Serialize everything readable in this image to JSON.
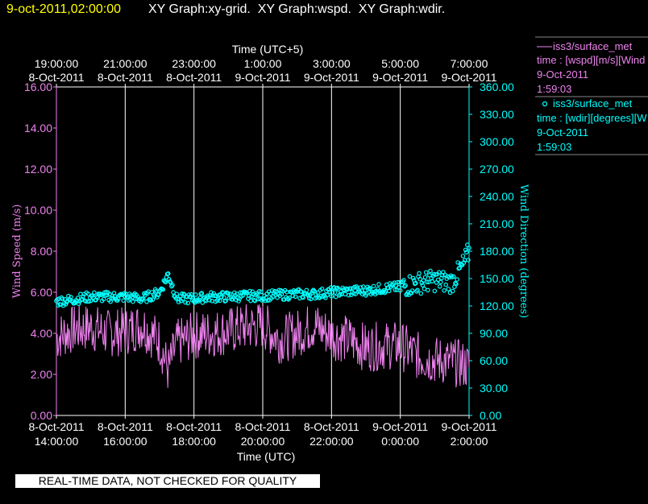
{
  "header": {
    "date_time": "9-oct-2011,02:00:00",
    "graphs": "XY Graph:xy-grid.  XY Graph:wspd.  XY Graph:wdir."
  },
  "top_axis": {
    "label": "Time (UTC+5)",
    "ticks": [
      {
        "time": "19:00:00",
        "date": "8-Oct-2011"
      },
      {
        "time": "21:00:00",
        "date": "8-Oct-2011"
      },
      {
        "time": "23:00:00",
        "date": "8-Oct-2011"
      },
      {
        "time": "1:00:00",
        "date": "9-Oct-2011"
      },
      {
        "time": "3:00:00",
        "date": "9-Oct-2011"
      },
      {
        "time": "5:00:00",
        "date": "9-Oct-2011"
      },
      {
        "time": "7:00:00",
        "date": "9-Oct-2011"
      }
    ]
  },
  "bottom_axis": {
    "label": "Time (UTC)",
    "ticks": [
      {
        "date": "8-Oct-2011",
        "time": "14:00:00"
      },
      {
        "date": "8-Oct-2011",
        "time": "16:00:00"
      },
      {
        "date": "8-Oct-2011",
        "time": "18:00:00"
      },
      {
        "date": "8-Oct-2011",
        "time": "20:00:00"
      },
      {
        "date": "8-Oct-2011",
        "time": "22:00:00"
      },
      {
        "date": "9-Oct-2011",
        "time": "0:00:00"
      },
      {
        "date": "9-Oct-2011",
        "time": "2:00:00"
      }
    ]
  },
  "legend": {
    "wspd": {
      "name": "iss3/surface_met",
      "desc": "time : [wspd][m/s][Wind",
      "date": "9-Oct-2011",
      "time": "1:59:03"
    },
    "wdir": {
      "name": "iss3/surface_met",
      "desc": "time : [wdir][degrees][W",
      "date": "9-Oct-2011",
      "time": "1:59:03"
    }
  },
  "note": "REAL-TIME DATA, NOT CHECKED FOR QUALITY",
  "colors": {
    "wspd": "#ee82ee",
    "wdir": "#00ffff",
    "header_date": "#ffff00",
    "grid": "#ffffff"
  },
  "chart_data": {
    "type": "line",
    "x_unit": "hours UTC",
    "xlim": [
      "2011-10-08 14:00",
      "2011-10-09 02:00"
    ],
    "grid": "vertical lines at each 2 h tick",
    "left_axis": {
      "label": "Wind Speed (m/s)",
      "ylim": [
        0,
        16
      ],
      "ticks": [
        "0.00",
        "2.00",
        "4.00",
        "6.00",
        "8.00",
        "10.00",
        "12.00",
        "14.00",
        "16.00"
      ]
    },
    "right_axis": {
      "label": "Wind Direction (degrees)",
      "ylim": [
        0,
        360
      ],
      "ticks": [
        "0.00",
        "30.00",
        "60.00",
        "90.00",
        "120.00",
        "150.00",
        "180.00",
        "210.00",
        "240.00",
        "270.00",
        "300.00",
        "330.00",
        "360.00"
      ]
    },
    "series": [
      {
        "name": "iss3/surface_met time : [wspd][m/s]",
        "axis": "left",
        "style": "line",
        "x": [
          "14:00",
          "14:30",
          "15:00",
          "15:30",
          "16:00",
          "16:30",
          "17:00",
          "17:15",
          "17:30",
          "18:00",
          "18:30",
          "19:00",
          "19:30",
          "20:00",
          "20:30",
          "21:00",
          "21:30",
          "22:00",
          "22:30",
          "23:00",
          "23:30",
          "00:00",
          "00:30",
          "01:00",
          "01:30",
          "02:00"
        ],
        "values": [
          3.8,
          4.2,
          4.3,
          4.0,
          4.1,
          4.4,
          3.6,
          2.2,
          3.5,
          3.9,
          4.0,
          4.1,
          4.3,
          4.4,
          3.7,
          4.0,
          4.4,
          3.9,
          3.7,
          3.3,
          3.4,
          3.4,
          2.9,
          2.7,
          2.6,
          2.4
        ]
      },
      {
        "name": "iss3/surface_met time : [wdir][degrees]",
        "axis": "right",
        "style": "circles",
        "x": [
          "14:00",
          "14:30",
          "15:00",
          "15:30",
          "16:00",
          "16:30",
          "17:00",
          "17:15",
          "17:30",
          "18:00",
          "18:30",
          "19:00",
          "19:30",
          "20:00",
          "20:30",
          "21:00",
          "21:30",
          "22:00",
          "22:30",
          "23:00",
          "23:30",
          "00:00",
          "00:30",
          "01:00",
          "01:30",
          "01:50",
          "02:00"
        ],
        "values": [
          125,
          127,
          130,
          130,
          130,
          128,
          135,
          155,
          128,
          128,
          130,
          130,
          131,
          131,
          132,
          133,
          133,
          135,
          136,
          137,
          139,
          141,
          145,
          148,
          146,
          165,
          180
        ]
      }
    ]
  }
}
